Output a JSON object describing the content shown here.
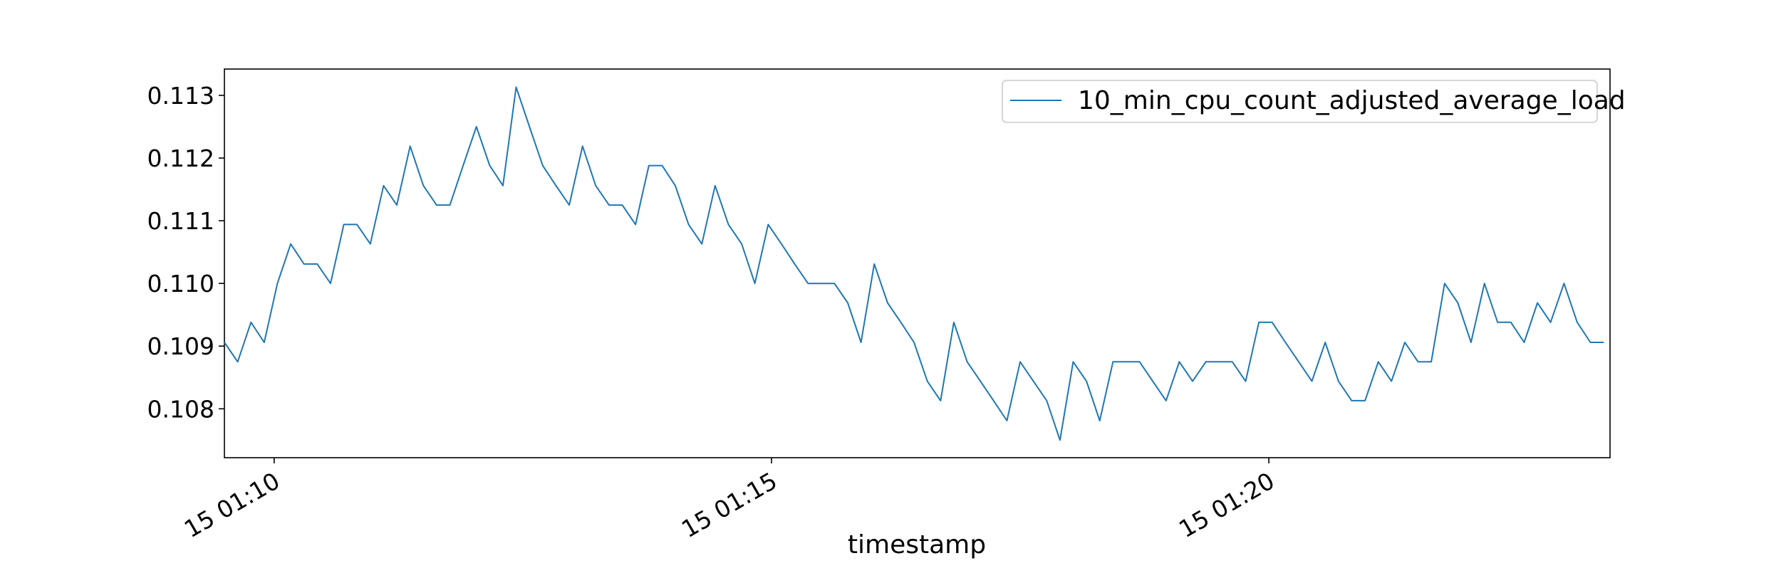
{
  "chart_data": {
    "type": "line",
    "title": "",
    "xlabel": "timestamp",
    "ylabel": "",
    "x_ticks": [
      "15 01:10",
      "15 01:15",
      "15 01:20"
    ],
    "x_tick_minutes": [
      10,
      15,
      20
    ],
    "xlim_minutes": [
      9.5,
      23.43
    ],
    "y_ticks": [
      "0.108",
      "0.109",
      "0.110",
      "0.111",
      "0.112",
      "0.113"
    ],
    "ylim": [
      0.10722,
      0.11342
    ],
    "grid": false,
    "legend_position": "top-right",
    "series": [
      {
        "name": "10_min_cpu_count_adjusted_average_load",
        "color": "#1f77b4",
        "x_minutes": [
          9.5,
          9.633,
          9.767,
          9.9,
          10.033,
          10.167,
          10.3,
          10.433,
          10.567,
          10.7,
          10.833,
          10.967,
          11.1,
          11.233,
          11.367,
          11.5,
          11.633,
          11.767,
          11.9,
          12.033,
          12.167,
          12.3,
          12.433,
          12.567,
          12.7,
          12.833,
          12.967,
          13.1,
          13.233,
          13.367,
          13.5,
          13.633,
          13.767,
          13.9,
          14.033,
          14.167,
          14.3,
          14.433,
          14.567,
          14.7,
          14.833,
          14.967,
          15.1,
          15.233,
          15.367,
          15.5,
          15.633,
          15.767,
          15.9,
          16.033,
          16.167,
          16.3,
          16.433,
          16.567,
          16.7,
          16.833,
          16.967,
          17.1,
          17.233,
          17.367,
          17.5,
          17.633,
          17.767,
          17.9,
          18.033,
          18.167,
          18.3,
          18.433,
          18.567,
          18.7,
          18.833,
          18.967,
          19.1,
          19.233,
          19.367,
          19.5,
          19.633,
          19.767,
          19.9,
          20.033,
          20.167,
          20.3,
          20.433,
          20.567,
          20.7,
          20.833,
          20.967,
          21.1,
          21.233,
          21.367,
          21.5,
          21.633,
          21.767,
          21.9,
          22.033,
          22.167,
          22.3,
          22.433,
          22.567,
          22.7,
          22.833,
          22.967,
          23.1,
          23.233,
          23.367
        ],
        "values": [
          0.10906,
          0.10875,
          0.10938,
          0.10906,
          0.11,
          0.11063,
          0.11031,
          0.11031,
          0.11,
          0.11094,
          0.11094,
          0.11063,
          0.11156,
          0.11125,
          0.11219,
          0.11156,
          0.11125,
          0.11125,
          0.11188,
          0.1125,
          0.11188,
          0.11156,
          0.11313,
          0.1125,
          0.11188,
          0.11156,
          0.11125,
          0.11219,
          0.11156,
          0.11125,
          0.11125,
          0.11094,
          0.11188,
          0.11188,
          0.11156,
          0.11094,
          0.11063,
          0.11156,
          0.11094,
          0.11063,
          0.11,
          0.11094,
          0.11063,
          0.11031,
          0.11,
          0.11,
          0.11,
          0.10969,
          0.10906,
          0.11031,
          0.10969,
          0.10938,
          0.10906,
          0.10844,
          0.10813,
          0.10938,
          0.10875,
          0.10844,
          0.10813,
          0.10781,
          0.10875,
          0.10844,
          0.10813,
          0.1075,
          0.10875,
          0.10844,
          0.10781,
          0.10875,
          0.10875,
          0.10875,
          0.10844,
          0.10813,
          0.10875,
          0.10844,
          0.10875,
          0.10875,
          0.10875,
          0.10844,
          0.10938,
          0.10938,
          0.10906,
          0.10875,
          0.10844,
          0.10906,
          0.10844,
          0.10813,
          0.10813,
          0.10875,
          0.10844,
          0.10906,
          0.10875,
          0.10875,
          0.11,
          0.10969,
          0.10906,
          0.11,
          0.10938,
          0.10938,
          0.10906,
          0.10969,
          0.10938,
          0.11,
          0.10938,
          0.10906,
          0.10906
        ]
      }
    ]
  }
}
